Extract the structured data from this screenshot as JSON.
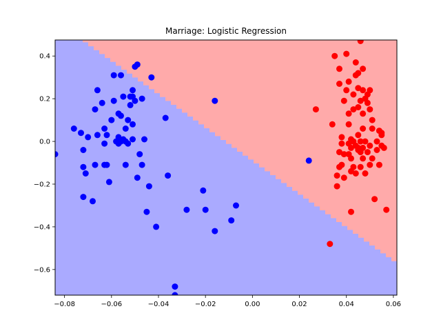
{
  "chart_data": {
    "type": "scatter",
    "title": "Marriage: Logistic Regression",
    "xlabel": "",
    "ylabel": "",
    "xlim": [
      -0.084,
      0.0615
    ],
    "ylim": [
      -0.72,
      0.475
    ],
    "x_ticks": [
      -0.08,
      -0.06,
      -0.04,
      -0.02,
      0.0,
      0.02,
      0.04,
      0.06
    ],
    "x_tick_labels": [
      "−0.08",
      "−0.06",
      "−0.04",
      "−0.02",
      "0.00",
      "0.02",
      "0.04",
      "0.06"
    ],
    "y_ticks": [
      -0.6,
      -0.4,
      -0.2,
      0.0,
      0.2,
      0.4
    ],
    "y_tick_labels": [
      "−0.6",
      "−0.4",
      "−0.2",
      "0.0",
      "0.2",
      "0.4"
    ],
    "grid": false,
    "colors": {
      "region_class_0": "#aaaaff",
      "region_class_1": "#ffaaaa",
      "point_class_0": "#0000ff",
      "point_class_1": "#ff0000"
    },
    "decision_boundary": {
      "description_points": [
        [
          -0.0725,
          0.475
        ],
        [
          0.0615,
          -0.57
        ]
      ]
    },
    "series": [
      {
        "class": 0,
        "points": [
          [
            -0.084,
            -0.06
          ],
          [
            -0.076,
            0.06
          ],
          [
            -0.073,
            0.04
          ],
          [
            -0.072,
            -0.04
          ],
          [
            -0.072,
            -0.12
          ],
          [
            -0.072,
            -0.26
          ],
          [
            -0.071,
            -0.15
          ],
          [
            -0.07,
            0.02
          ],
          [
            -0.068,
            -0.28
          ],
          [
            -0.067,
            -0.11
          ],
          [
            -0.067,
            0.15
          ],
          [
            -0.066,
            0.24
          ],
          [
            -0.066,
            0.03
          ],
          [
            -0.064,
            0.18
          ],
          [
            -0.063,
            0.06
          ],
          [
            -0.063,
            -0.01
          ],
          [
            -0.063,
            -0.11
          ],
          [
            -0.062,
            -0.11
          ],
          [
            -0.062,
            0.03
          ],
          [
            -0.061,
            -0.19
          ],
          [
            -0.06,
            0.1
          ],
          [
            -0.059,
            0.19
          ],
          [
            -0.059,
            0.31
          ],
          [
            -0.058,
            0.0
          ],
          [
            -0.057,
            0.13
          ],
          [
            -0.057,
            0.02
          ],
          [
            -0.057,
            -0.01
          ],
          [
            -0.056,
            0.12
          ],
          [
            -0.056,
            0.31
          ],
          [
            -0.056,
            0.0
          ],
          [
            -0.055,
            0.21
          ],
          [
            -0.055,
            0.01
          ],
          [
            -0.054,
            0.06
          ],
          [
            -0.054,
            0.0
          ],
          [
            -0.054,
            -0.11
          ],
          [
            -0.053,
            0.1
          ],
          [
            -0.053,
            -0.01
          ],
          [
            -0.052,
            0.21
          ],
          [
            -0.052,
            0.17
          ],
          [
            -0.051,
            0.24
          ],
          [
            -0.051,
            0.21
          ],
          [
            -0.051,
            0.08
          ],
          [
            -0.051,
            0.01
          ],
          [
            -0.05,
            0.35
          ],
          [
            -0.05,
            0.19
          ],
          [
            -0.049,
            0.36
          ],
          [
            -0.049,
            -0.17
          ],
          [
            -0.048,
            -0.06
          ],
          [
            -0.047,
            -0.11
          ],
          [
            -0.047,
            0.2
          ],
          [
            -0.046,
            0.01
          ],
          [
            -0.045,
            -0.33
          ],
          [
            -0.044,
            -0.21
          ],
          [
            -0.043,
            0.3
          ],
          [
            -0.041,
            -0.4
          ],
          [
            -0.037,
            0.11
          ],
          [
            -0.036,
            -0.16
          ],
          [
            -0.033,
            -0.68
          ],
          [
            -0.033,
            -0.72
          ],
          [
            -0.028,
            -0.32
          ],
          [
            -0.021,
            -0.23
          ],
          [
            -0.02,
            -0.32
          ],
          [
            -0.016,
            0.19
          ],
          [
            -0.016,
            -0.42
          ],
          [
            -0.009,
            -0.37
          ],
          [
            -0.007,
            -0.3
          ],
          [
            0.024,
            -0.09
          ]
        ]
      },
      {
        "class": 1,
        "points": [
          [
            0.027,
            0.15
          ],
          [
            0.033,
            -0.48
          ],
          [
            0.034,
            0.08
          ],
          [
            0.035,
            0.4
          ],
          [
            0.036,
            -0.21
          ],
          [
            0.036,
            -0.16
          ],
          [
            0.037,
            0.27
          ],
          [
            0.037,
            -0.05
          ],
          [
            0.037,
            -0.12
          ],
          [
            0.037,
            0.34
          ],
          [
            0.038,
            0.02
          ],
          [
            0.038,
            -0.11
          ],
          [
            0.038,
            -0.01
          ],
          [
            0.039,
            0.19
          ],
          [
            0.039,
            -0.17
          ],
          [
            0.039,
            -0.06
          ],
          [
            0.04,
            0.41
          ],
          [
            0.04,
            0.24
          ],
          [
            0.041,
            0.28
          ],
          [
            0.041,
            0.13
          ],
          [
            0.041,
            0.08
          ],
          [
            0.041,
            -0.01
          ],
          [
            0.041,
            -0.06
          ],
          [
            0.042,
            0.01
          ],
          [
            0.042,
            -0.03
          ],
          [
            0.042,
            -0.08
          ],
          [
            0.042,
            -0.14
          ],
          [
            0.042,
            -0.33
          ],
          [
            0.043,
            0.22
          ],
          [
            0.043,
            0.15
          ],
          [
            0.043,
            0.0
          ],
          [
            0.043,
            -0.12
          ],
          [
            0.044,
            0.37
          ],
          [
            0.044,
            0.31
          ],
          [
            0.044,
            -0.02
          ],
          [
            0.044,
            -0.15
          ],
          [
            0.045,
            0.32
          ],
          [
            0.045,
            0.25
          ],
          [
            0.045,
            0.16
          ],
          [
            0.045,
            0.03
          ],
          [
            0.045,
            -0.03
          ],
          [
            0.045,
            -0.04
          ],
          [
            0.046,
            0.47
          ],
          [
            0.046,
            0.19
          ],
          [
            0.046,
            0.0
          ],
          [
            0.046,
            -0.05
          ],
          [
            0.046,
            -0.12
          ],
          [
            0.047,
            0.34
          ],
          [
            0.047,
            0.24
          ],
          [
            0.047,
            0.13
          ],
          [
            0.047,
            0.06
          ],
          [
            0.047,
            -0.03
          ],
          [
            0.047,
            -0.08
          ],
          [
            0.048,
            0.2
          ],
          [
            0.048,
            0.0
          ],
          [
            0.048,
            -0.15
          ],
          [
            0.049,
            0.18
          ],
          [
            0.049,
            0.22
          ],
          [
            0.049,
            -0.05
          ],
          [
            0.05,
            0.24
          ],
          [
            0.05,
            0.15
          ],
          [
            0.05,
            -0.02
          ],
          [
            0.05,
            -0.11
          ],
          [
            0.051,
            0.1
          ],
          [
            0.051,
            0.06
          ],
          [
            0.051,
            -0.08
          ],
          [
            0.052,
            -0.27
          ],
          [
            0.053,
            0.0
          ],
          [
            0.053,
            -0.04
          ],
          [
            0.054,
            0.05
          ],
          [
            0.054,
            -0.11
          ],
          [
            0.055,
            0.03
          ],
          [
            0.055,
            0.04
          ],
          [
            0.055,
            -0.02
          ],
          [
            0.056,
            -0.03
          ],
          [
            0.057,
            -0.32
          ]
        ]
      }
    ]
  }
}
